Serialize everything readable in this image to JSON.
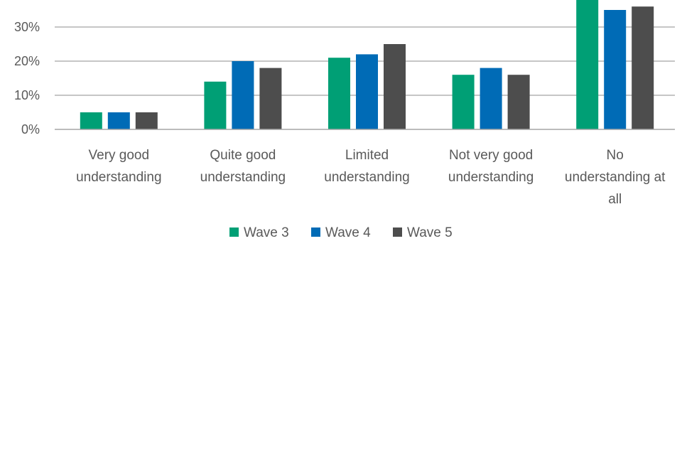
{
  "chart_data": {
    "type": "bar",
    "categories": [
      [
        "Very good",
        "understanding"
      ],
      [
        "Quite good",
        "understanding"
      ],
      [
        "Limited",
        "understanding"
      ],
      [
        "Not very good",
        "understanding"
      ],
      [
        "No",
        "understanding at",
        "all"
      ]
    ],
    "series": [
      {
        "name": "Wave 3",
        "color": "#009f75",
        "values": [
          5,
          14,
          21,
          16,
          38
        ]
      },
      {
        "name": "Wave 4",
        "color": "#006bb6",
        "values": [
          5,
          20,
          22,
          18,
          35
        ]
      },
      {
        "name": "Wave 5",
        "color": "#4d4d4d",
        "values": [
          5,
          18,
          25,
          16,
          36
        ]
      }
    ],
    "ylim": [
      0,
      40
    ],
    "yticks": [
      0,
      10,
      20,
      30
    ],
    "ytick_suffix": "%",
    "grid": true,
    "legend": "bottom"
  }
}
